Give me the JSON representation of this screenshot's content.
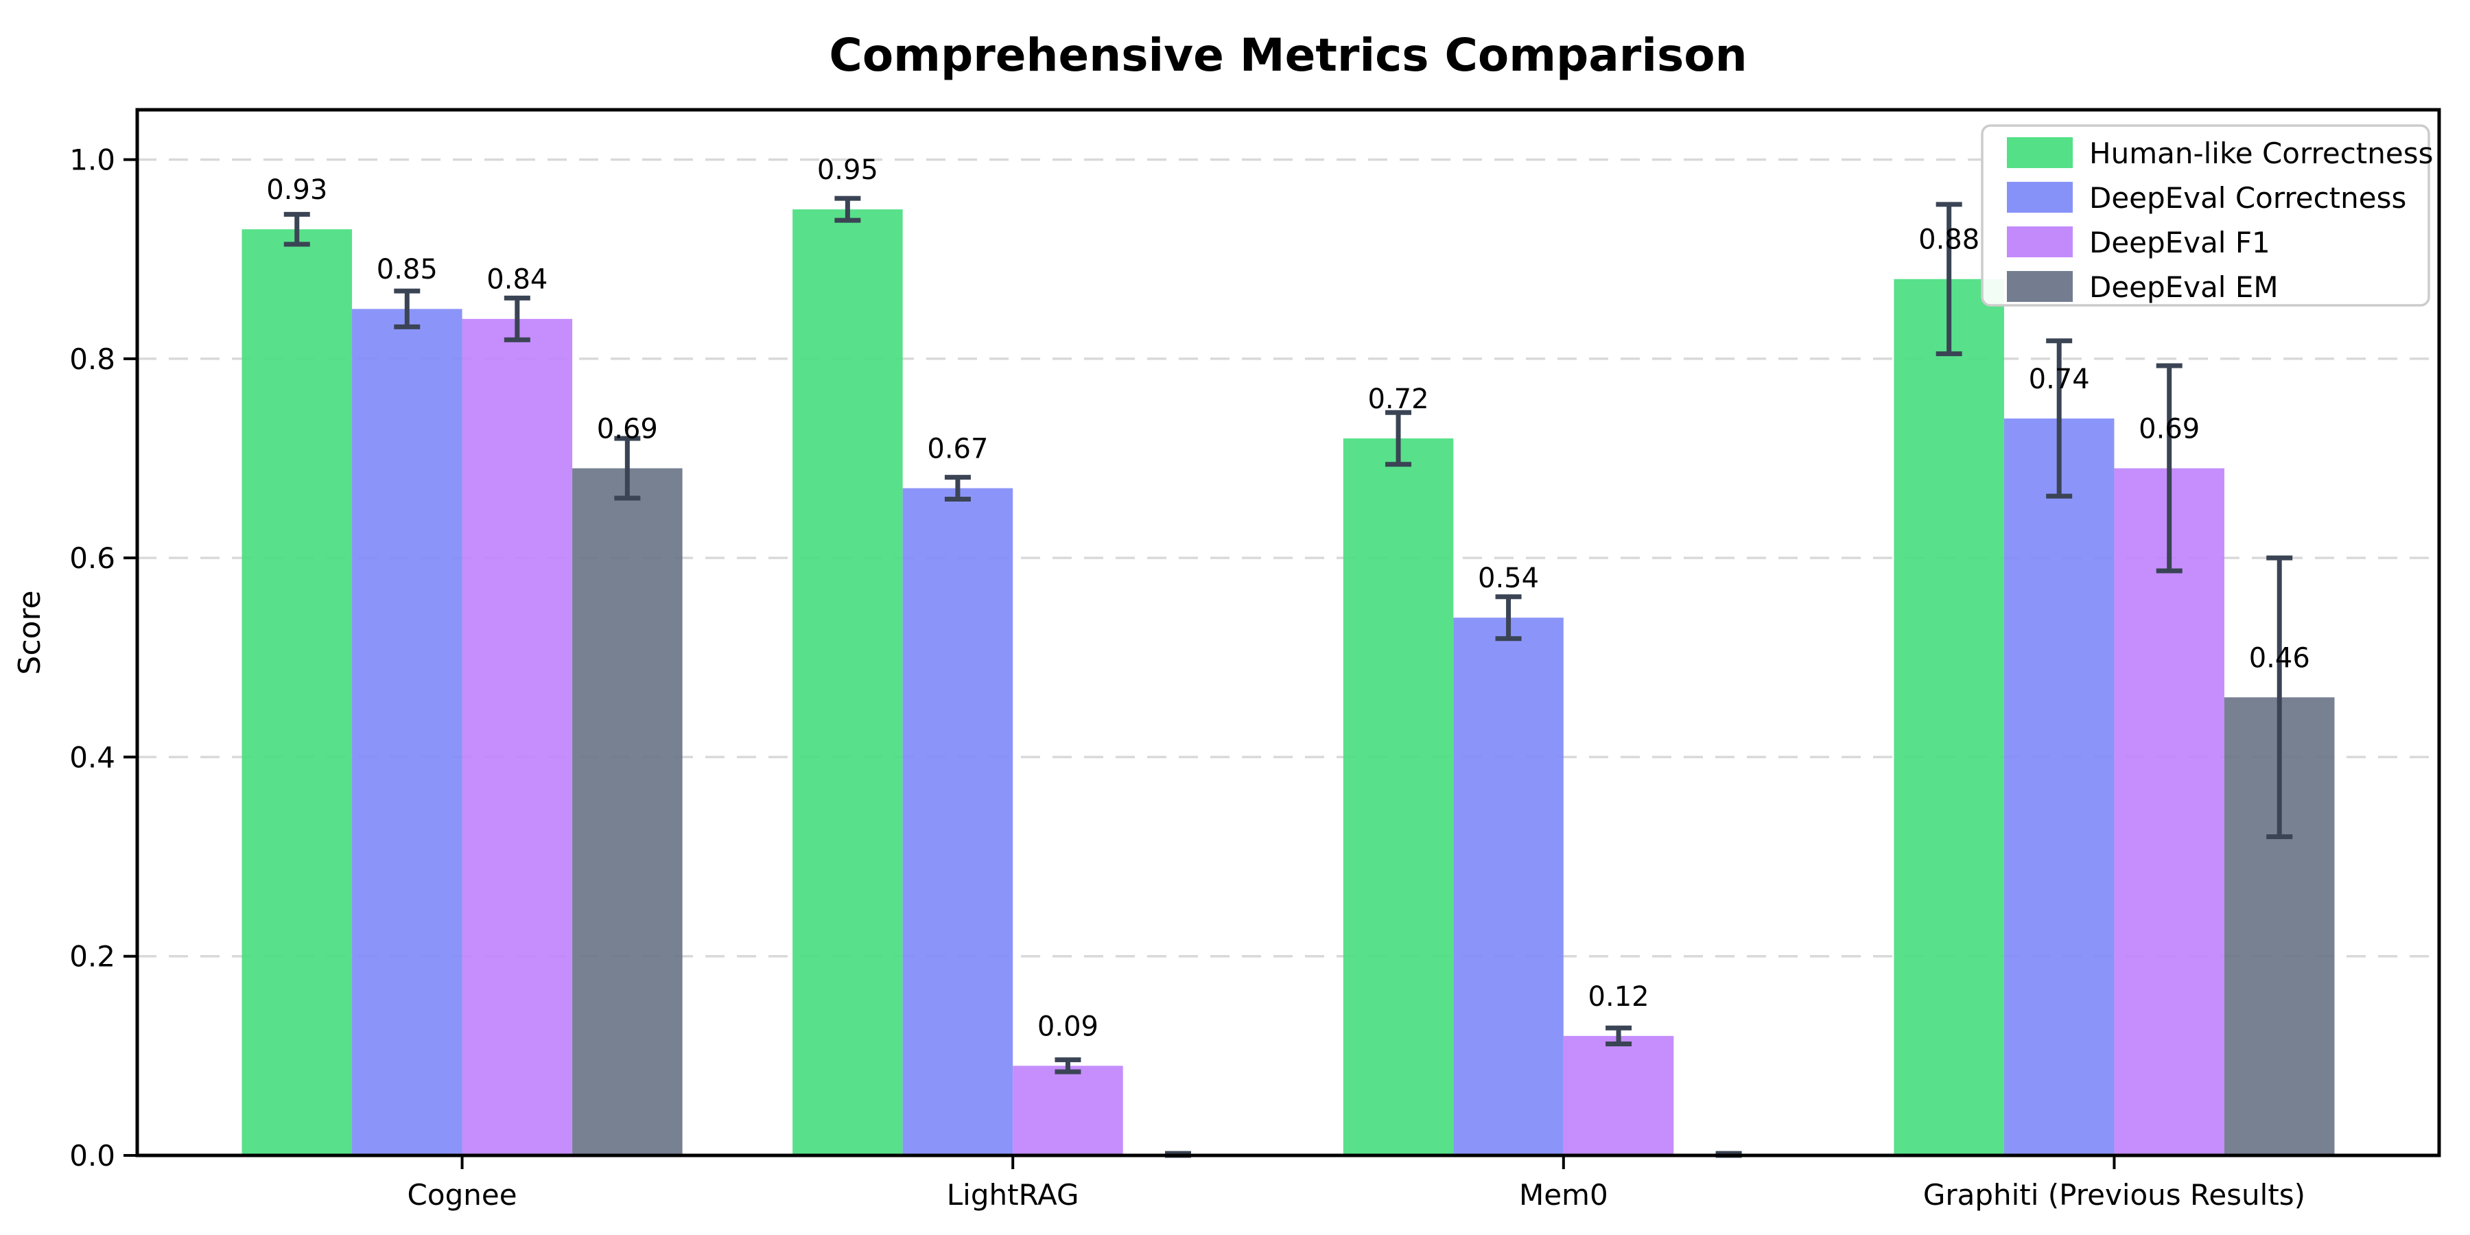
{
  "chart_data": {
    "type": "bar",
    "title": "Comprehensive Metrics Comparison",
    "ylabel": "Score",
    "xlabel": "",
    "categories": [
      "Cognee",
      "LightRAG",
      "Mem0",
      "Graphiti (Previous Results)"
    ],
    "series": [
      {
        "name": "Human-like Correctness",
        "color": "#4ade80",
        "values": [
          0.93,
          0.95,
          0.72,
          0.88
        ],
        "errors": [
          0.015,
          0.011,
          0.026,
          0.075
        ],
        "value_labels": [
          "0.93",
          "0.95",
          "0.72",
          "0.88"
        ]
      },
      {
        "name": "DeepEval Correctness",
        "color": "#818cf8",
        "values": [
          0.85,
          0.67,
          0.54,
          0.74
        ],
        "errors": [
          0.018,
          0.011,
          0.021,
          0.078
        ],
        "value_labels": [
          "0.85",
          "0.67",
          "0.54",
          "0.74"
        ]
      },
      {
        "name": "DeepEval F1",
        "color": "#c084fc",
        "values": [
          0.84,
          0.09,
          0.12,
          0.69
        ],
        "errors": [
          0.021,
          0.006,
          0.008,
          0.103
        ],
        "value_labels": [
          "0.84",
          "0.09",
          "0.12",
          "0.69"
        ]
      },
      {
        "name": "DeepEval EM",
        "color": "#6b7689",
        "values": [
          0.69,
          0.0,
          0.0,
          0.46
        ],
        "errors": [
          0.03,
          0.002,
          0.002,
          0.14
        ],
        "value_labels": [
          "0.69",
          "",
          "",
          "0.46"
        ]
      }
    ],
    "ylim": [
      0,
      1.05
    ],
    "yticks": [
      0.0,
      0.2,
      0.4,
      0.6,
      0.8,
      1.0
    ],
    "ytick_labels": [
      "0.0",
      "0.2",
      "0.4",
      "0.6",
      "0.8",
      "1.0"
    ],
    "grid": {
      "horizontal_dashed_at": [
        0.2,
        0.4,
        0.6,
        0.8,
        1.0
      ],
      "color": "#d9d9d9"
    },
    "legend": {
      "position": "upper right",
      "entries": [
        "Human-like Correctness",
        "DeepEval Correctness",
        "DeepEval F1",
        "DeepEval EM"
      ]
    },
    "errorbar_color": "#3a4454",
    "value_label_note": "labels show value + not shown when value is 0"
  }
}
